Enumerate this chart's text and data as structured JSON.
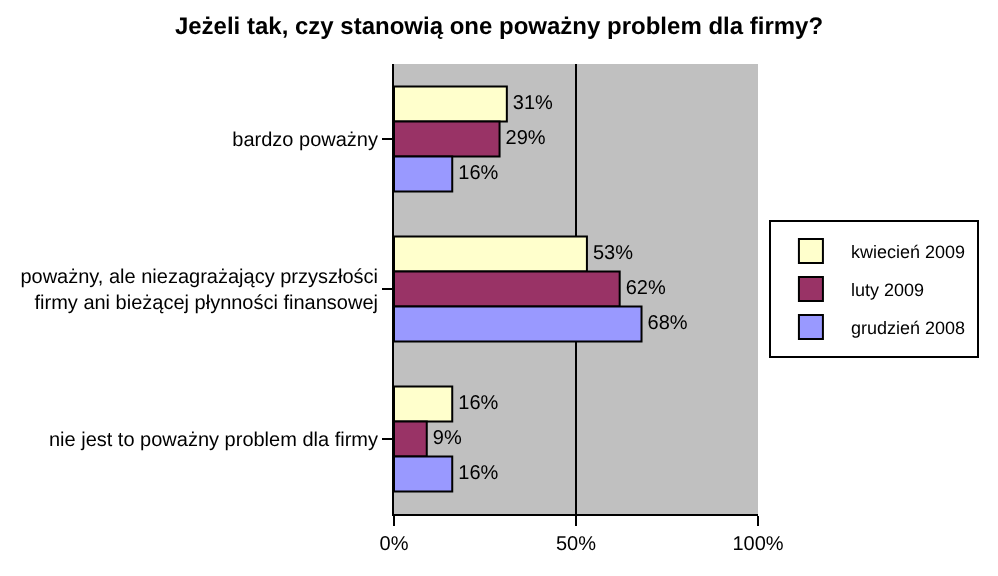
{
  "chart_data": {
    "type": "bar",
    "orientation": "horizontal",
    "title": "Jeżeli tak, czy stanowią one poważny problem dla firmy?",
    "categories": [
      "bardzo poważny",
      "poważny, ale niezagrażający przyszłości\nfirmy ani bieżącej płynności finansowej",
      "nie jest to poważny problem dla firmy"
    ],
    "series": [
      {
        "name": "kwiecień 2009",
        "color": "#ffffcc",
        "values": [
          31,
          53,
          16
        ],
        "value_labels": [
          "31%",
          "53%",
          "16%"
        ]
      },
      {
        "name": "luty 2009",
        "color": "#993366",
        "values": [
          29,
          62,
          9
        ],
        "value_labels": [
          "29%",
          "62%",
          "9%"
        ]
      },
      {
        "name": "grudzień 2008",
        "color": "#9999ff",
        "values": [
          16,
          68,
          16
        ],
        "value_labels": [
          "16%",
          "68%",
          "16%"
        ]
      }
    ],
    "xlim": [
      0,
      100
    ],
    "xticks": [
      {
        "value": 0,
        "label": "0%"
      },
      {
        "value": 50,
        "label": "50%"
      },
      {
        "value": 100,
        "label": "100%"
      }
    ],
    "grid": "x",
    "legend": "right"
  }
}
